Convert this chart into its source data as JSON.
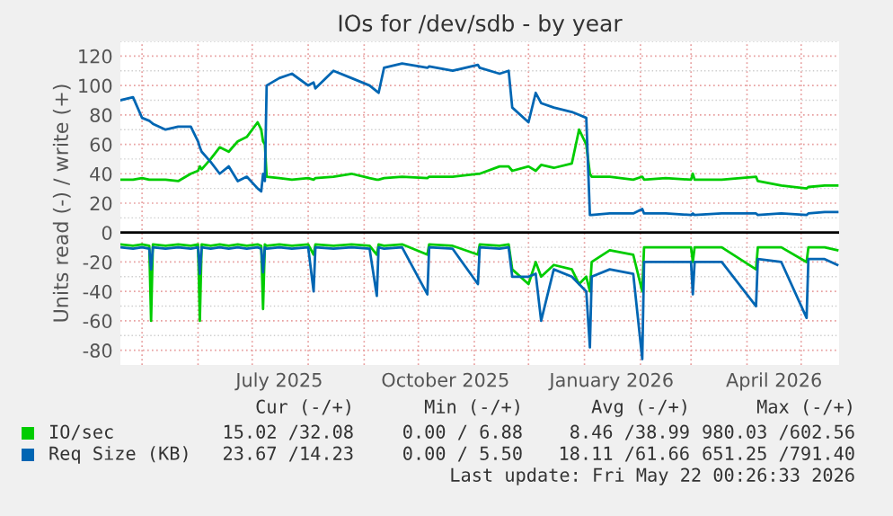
{
  "chart_data": {
    "type": "line",
    "title": "IOs for /dev/sdb - by year",
    "ylabel": "Units read (-) / write (+)",
    "x": [
      "2025-04-19",
      "2025-04-26",
      "2025-05-01",
      "2025-05-05",
      "2025-05-06",
      "2025-05-07",
      "2025-05-14",
      "2025-05-21",
      "2025-05-28",
      "2025-06-01",
      "2025-06-02",
      "2025-06-03",
      "2025-06-08",
      "2025-06-13",
      "2025-06-18",
      "2025-06-23",
      "2025-06-28",
      "2025-07-04",
      "2025-07-06",
      "2025-07-07",
      "2025-07-08",
      "2025-07-09",
      "2025-07-16",
      "2025-07-23",
      "2025-08-01",
      "2025-08-04",
      "2025-08-05",
      "2025-08-15",
      "2025-08-25",
      "2025-09-04",
      "2025-09-08",
      "2025-09-09",
      "2025-09-12",
      "2025-09-22",
      "2025-10-06",
      "2025-10-07",
      "2025-10-20",
      "2025-11-03",
      "2025-11-04",
      "2025-11-15",
      "2025-11-20",
      "2025-11-22",
      "2025-12-01",
      "2025-12-05",
      "2025-12-08",
      "2025-12-15",
      "2025-12-25",
      "2025-12-29",
      "2026-01-02",
      "2026-01-04",
      "2026-01-05",
      "2026-01-15",
      "2026-01-28",
      "2026-02-02",
      "2026-02-03",
      "2026-02-15",
      "2026-03-01",
      "2026-03-02",
      "2026-03-03",
      "2026-03-18",
      "2026-04-06",
      "2026-04-07",
      "2026-04-20",
      "2026-05-04",
      "2026-05-05",
      "2026-05-14",
      "2026-05-21"
    ],
    "series": [
      {
        "color": "#00cc00",
        "values": [
          -8,
          -9,
          -8,
          -9,
          -60,
          -8,
          -9,
          -8,
          -9,
          -8,
          -60,
          -8,
          -9,
          -8,
          -9,
          -8,
          -9,
          -8,
          -9,
          -52,
          -8,
          -9,
          -8,
          -9,
          -8,
          -15,
          -8,
          -9,
          -8,
          -9,
          -15,
          -8,
          -9,
          -8,
          -15,
          -8,
          -9,
          -15,
          -8,
          -9,
          -8,
          -25,
          -35,
          -20,
          -30,
          -22,
          -25,
          -35,
          -30,
          -40,
          -20,
          -12,
          -15,
          -40,
          -10,
          -10,
          -10,
          -20,
          -10,
          -10,
          -25,
          -10,
          -10,
          -20,
          -10,
          -10,
          -12
        ]
      },
      {
        "name": "IO/sec",
        "color": "#00cc00",
        "values": [
          36,
          36,
          37,
          36,
          36,
          36,
          36,
          35,
          40,
          42,
          45,
          43,
          50,
          58,
          55,
          62,
          65,
          75,
          70,
          62,
          60,
          38,
          37,
          36,
          37,
          36,
          37,
          38,
          40,
          37,
          36,
          36,
          37,
          38,
          37,
          38,
          38,
          40,
          40,
          45,
          45,
          42,
          45,
          42,
          46,
          44,
          47,
          70,
          60,
          40,
          38,
          38,
          36,
          38,
          36,
          37,
          36,
          40,
          36,
          36,
          38,
          35,
          32,
          30,
          31,
          32,
          32
        ]
      },
      {
        "color": "#0066b3",
        "values": [
          -10,
          -11,
          -10,
          -11,
          -25,
          -10,
          -11,
          -10,
          -11,
          -10,
          -28,
          -10,
          -11,
          -10,
          -11,
          -10,
          -11,
          -10,
          -11,
          -27,
          -10,
          -11,
          -10,
          -11,
          -10,
          -40,
          -10,
          -11,
          -10,
          -11,
          -43,
          -10,
          -11,
          -10,
          -42,
          -10,
          -11,
          -35,
          -10,
          -11,
          -10,
          -30,
          -30,
          -28,
          -60,
          -25,
          -30,
          -35,
          -40,
          -78,
          -30,
          -25,
          -28,
          -86,
          -20,
          -20,
          -20,
          -42,
          -20,
          -20,
          -50,
          -18,
          -20,
          -58,
          -18,
          -18,
          -22
        ]
      },
      {
        "name": "Req Size (KB)",
        "color": "#0066b3",
        "values": [
          90,
          92,
          78,
          76,
          75,
          74,
          70,
          72,
          72,
          62,
          58,
          55,
          48,
          40,
          45,
          35,
          38,
          30,
          28,
          40,
          35,
          100,
          105,
          108,
          100,
          102,
          98,
          110,
          105,
          100,
          96,
          95,
          112,
          115,
          112,
          113,
          110,
          114,
          112,
          108,
          110,
          85,
          75,
          95,
          88,
          85,
          82,
          80,
          78,
          12,
          12,
          13,
          13,
          16,
          13,
          13,
          12,
          13,
          12,
          13,
          13,
          12,
          13,
          12,
          13,
          14,
          14
        ]
      }
    ],
    "xlim": [
      "2025-04-19",
      "2026-05-22"
    ],
    "xticks": [
      {
        "value": "2025-05-01",
        "label": null
      },
      {
        "value": "2025-06-01",
        "label": null
      },
      {
        "value": "2025-07-01",
        "label": null
      },
      {
        "value": "2025-07-16",
        "label": "July 2025"
      },
      {
        "value": "2025-08-01",
        "label": null
      },
      {
        "value": "2025-09-01",
        "label": null
      },
      {
        "value": "2025-10-01",
        "label": null
      },
      {
        "value": "2025-10-16",
        "label": "October 2025"
      },
      {
        "value": "2025-11-01",
        "label": null
      },
      {
        "value": "2025-12-01",
        "label": null
      },
      {
        "value": "2026-01-01",
        "label": null
      },
      {
        "value": "2026-01-16",
        "label": "January 2026"
      },
      {
        "value": "2026-02-01",
        "label": null
      },
      {
        "value": "2026-03-01",
        "label": null
      },
      {
        "value": "2026-04-01",
        "label": null
      },
      {
        "value": "2026-04-16",
        "label": "April 2026"
      },
      {
        "value": "2026-05-01",
        "label": null
      }
    ],
    "ylim": [
      -90,
      130
    ],
    "yticks": [
      -80,
      -60,
      -40,
      -20,
      0,
      20,
      40,
      60,
      80,
      100,
      120
    ],
    "grid": true,
    "legend": "bottom left",
    "ref_lines": [
      {
        "axis": "y",
        "value": 0,
        "color": "#000000"
      }
    ],
    "annotations": [
      "Cur (-/+)",
      "Min (-/+)",
      "Avg (-/+)",
      "Max (-/+)",
      "15.02 /32.08",
      "0.00 / 6.88",
      "8.46 /38.99",
      "980.03 /602.56",
      "23.67 /14.23",
      "0.00 / 5.50",
      "18.11 /61.66",
      "651.25 /791.40",
      "Last update: Fri May 22 00:26:33 2026"
    ]
  }
}
